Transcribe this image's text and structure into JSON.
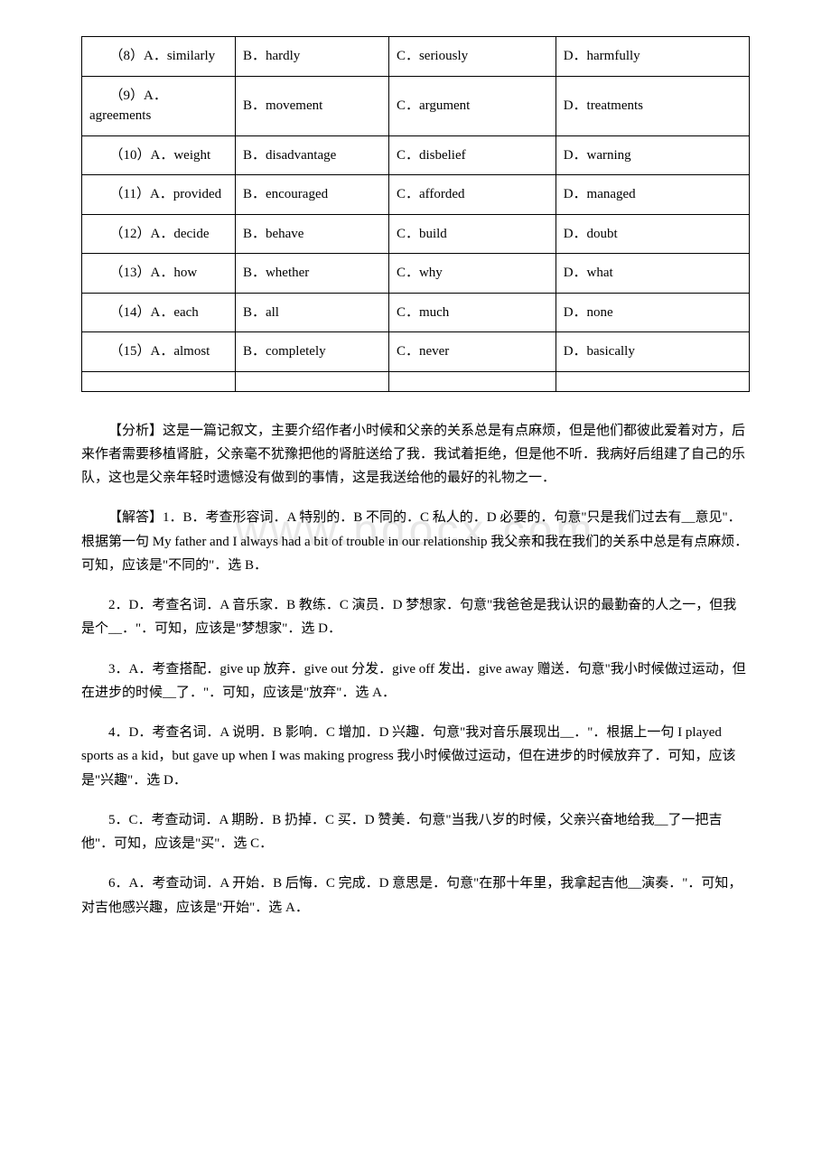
{
  "watermark": "www.bdocx.com",
  "table": {
    "rows": [
      [
        "　　（8）A．similarly",
        "B．hardly",
        "C．seriously",
        "D．harmfully"
      ],
      [
        "　　（9）A．agreements",
        "B．movement",
        "C．argument",
        "D．treatments"
      ],
      [
        "　　（10）A．weight",
        "B．disadvantage",
        "C．disbelief",
        "D．warning"
      ],
      [
        "　　（11）A．provided",
        "B．encouraged",
        "C．afforded",
        "D．managed"
      ],
      [
        "　　（12）A．decide",
        "B．behave",
        "C．build",
        "D．doubt"
      ],
      [
        "　　（13）A．how",
        "B．whether",
        "C．why",
        "D．what"
      ],
      [
        "　　（14）A．each",
        "B．all",
        "C．much",
        "D．none"
      ],
      [
        "　　（15）A．almost",
        "B．completely",
        "C．never",
        "D．basically"
      ]
    ]
  },
  "paragraphs": [
    "【分析】这是一篇记叙文，主要介绍作者小时候和父亲的关系总是有点麻烦，但是他们都彼此爱着对方，后来作者需要移植肾脏，父亲毫不犹豫把他的肾脏送给了我．我试着拒绝，但是他不听．我病好后组建了自己的乐队，这也是父亲年轻时遗憾没有做到的事情，这是我送给他的最好的礼物之一．",
    "【解答】1．B．考查形容词．A 特别的．B 不同的．C 私人的．D 必要的．句意\"只是我们过去有__意见\"．根据第一句 My father and I always had a bit of trouble in our relationship 我父亲和我在我们的关系中总是有点麻烦．可知，应该是\"不同的\"．选 B．",
    "2．D．考查名词．A 音乐家．B 教练．C 演员．D 梦想家．句意\"我爸爸是我认识的最勤奋的人之一，但我是个__．\"．可知，应该是\"梦想家\"．选 D．",
    "3．A．考查搭配．give up 放弃．give out 分发．give off 发出．give away 赠送．句意\"我小时候做过运动，但在进步的时候__了．\"．可知，应该是\"放弃\"．选 A．",
    "4．D．考查名词．A 说明．B 影响．C 增加．D 兴趣．句意\"我对音乐展现出__．\"．根据上一句 I played sports as a kid，but gave up when I was making progress 我小时候做过运动，但在进步的时候放弃了．可知，应该是\"兴趣\"．选 D．",
    "5．C．考查动词．A 期盼．B 扔掉．C 买．D 赞美．句意\"当我八岁的时候，父亲兴奋地给我__了一把吉他\"．可知，应该是\"买\"．选 C．",
    "6．A．考查动词．A 开始．B 后悔．C 完成．D 意思是．句意\"在那十年里，我拿起吉他__演奏．\"．可知，对吉他感兴趣，应该是\"开始\"．选 A．"
  ]
}
